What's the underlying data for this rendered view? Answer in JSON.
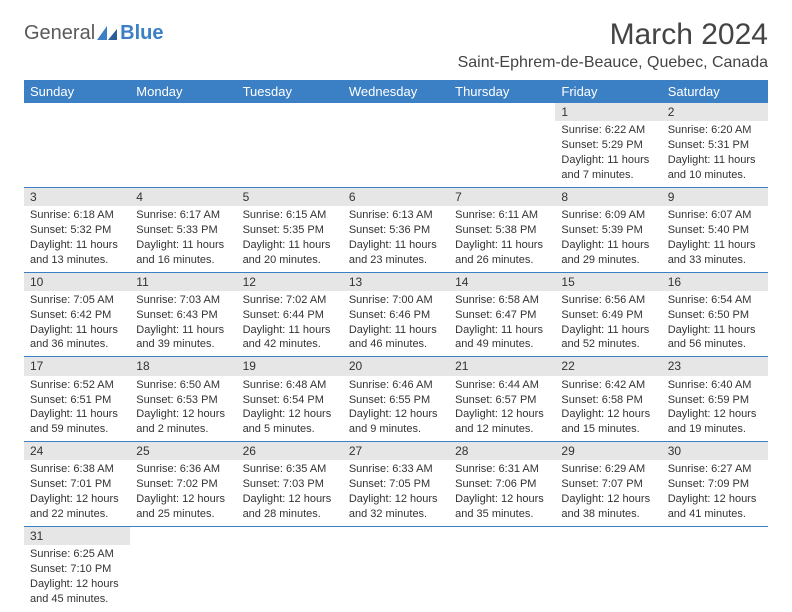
{
  "logo": {
    "text_general": "General",
    "text_blue": "Blue"
  },
  "title": "March 2024",
  "location": "Saint-Ephrem-de-Beauce, Quebec, Canada",
  "colors": {
    "header_bg": "#3b7fc4",
    "header_text": "#ffffff",
    "daynum_bg": "#e6e6e6",
    "cell_border": "#3b7fc4",
    "text": "#333333",
    "logo_blue": "#3b7fc4",
    "background": "#ffffff"
  },
  "weekdays": [
    "Sunday",
    "Monday",
    "Tuesday",
    "Wednesday",
    "Thursday",
    "Friday",
    "Saturday"
  ],
  "weeks": [
    [
      null,
      null,
      null,
      null,
      null,
      {
        "day": "1",
        "sunrise": "Sunrise: 6:22 AM",
        "sunset": "Sunset: 5:29 PM",
        "daylight1": "Daylight: 11 hours",
        "daylight2": "and 7 minutes."
      },
      {
        "day": "2",
        "sunrise": "Sunrise: 6:20 AM",
        "sunset": "Sunset: 5:31 PM",
        "daylight1": "Daylight: 11 hours",
        "daylight2": "and 10 minutes."
      }
    ],
    [
      {
        "day": "3",
        "sunrise": "Sunrise: 6:18 AM",
        "sunset": "Sunset: 5:32 PM",
        "daylight1": "Daylight: 11 hours",
        "daylight2": "and 13 minutes."
      },
      {
        "day": "4",
        "sunrise": "Sunrise: 6:17 AM",
        "sunset": "Sunset: 5:33 PM",
        "daylight1": "Daylight: 11 hours",
        "daylight2": "and 16 minutes."
      },
      {
        "day": "5",
        "sunrise": "Sunrise: 6:15 AM",
        "sunset": "Sunset: 5:35 PM",
        "daylight1": "Daylight: 11 hours",
        "daylight2": "and 20 minutes."
      },
      {
        "day": "6",
        "sunrise": "Sunrise: 6:13 AM",
        "sunset": "Sunset: 5:36 PM",
        "daylight1": "Daylight: 11 hours",
        "daylight2": "and 23 minutes."
      },
      {
        "day": "7",
        "sunrise": "Sunrise: 6:11 AM",
        "sunset": "Sunset: 5:38 PM",
        "daylight1": "Daylight: 11 hours",
        "daylight2": "and 26 minutes."
      },
      {
        "day": "8",
        "sunrise": "Sunrise: 6:09 AM",
        "sunset": "Sunset: 5:39 PM",
        "daylight1": "Daylight: 11 hours",
        "daylight2": "and 29 minutes."
      },
      {
        "day": "9",
        "sunrise": "Sunrise: 6:07 AM",
        "sunset": "Sunset: 5:40 PM",
        "daylight1": "Daylight: 11 hours",
        "daylight2": "and 33 minutes."
      }
    ],
    [
      {
        "day": "10",
        "sunrise": "Sunrise: 7:05 AM",
        "sunset": "Sunset: 6:42 PM",
        "daylight1": "Daylight: 11 hours",
        "daylight2": "and 36 minutes."
      },
      {
        "day": "11",
        "sunrise": "Sunrise: 7:03 AM",
        "sunset": "Sunset: 6:43 PM",
        "daylight1": "Daylight: 11 hours",
        "daylight2": "and 39 minutes."
      },
      {
        "day": "12",
        "sunrise": "Sunrise: 7:02 AM",
        "sunset": "Sunset: 6:44 PM",
        "daylight1": "Daylight: 11 hours",
        "daylight2": "and 42 minutes."
      },
      {
        "day": "13",
        "sunrise": "Sunrise: 7:00 AM",
        "sunset": "Sunset: 6:46 PM",
        "daylight1": "Daylight: 11 hours",
        "daylight2": "and 46 minutes."
      },
      {
        "day": "14",
        "sunrise": "Sunrise: 6:58 AM",
        "sunset": "Sunset: 6:47 PM",
        "daylight1": "Daylight: 11 hours",
        "daylight2": "and 49 minutes."
      },
      {
        "day": "15",
        "sunrise": "Sunrise: 6:56 AM",
        "sunset": "Sunset: 6:49 PM",
        "daylight1": "Daylight: 11 hours",
        "daylight2": "and 52 minutes."
      },
      {
        "day": "16",
        "sunrise": "Sunrise: 6:54 AM",
        "sunset": "Sunset: 6:50 PM",
        "daylight1": "Daylight: 11 hours",
        "daylight2": "and 56 minutes."
      }
    ],
    [
      {
        "day": "17",
        "sunrise": "Sunrise: 6:52 AM",
        "sunset": "Sunset: 6:51 PM",
        "daylight1": "Daylight: 11 hours",
        "daylight2": "and 59 minutes."
      },
      {
        "day": "18",
        "sunrise": "Sunrise: 6:50 AM",
        "sunset": "Sunset: 6:53 PM",
        "daylight1": "Daylight: 12 hours",
        "daylight2": "and 2 minutes."
      },
      {
        "day": "19",
        "sunrise": "Sunrise: 6:48 AM",
        "sunset": "Sunset: 6:54 PM",
        "daylight1": "Daylight: 12 hours",
        "daylight2": "and 5 minutes."
      },
      {
        "day": "20",
        "sunrise": "Sunrise: 6:46 AM",
        "sunset": "Sunset: 6:55 PM",
        "daylight1": "Daylight: 12 hours",
        "daylight2": "and 9 minutes."
      },
      {
        "day": "21",
        "sunrise": "Sunrise: 6:44 AM",
        "sunset": "Sunset: 6:57 PM",
        "daylight1": "Daylight: 12 hours",
        "daylight2": "and 12 minutes."
      },
      {
        "day": "22",
        "sunrise": "Sunrise: 6:42 AM",
        "sunset": "Sunset: 6:58 PM",
        "daylight1": "Daylight: 12 hours",
        "daylight2": "and 15 minutes."
      },
      {
        "day": "23",
        "sunrise": "Sunrise: 6:40 AM",
        "sunset": "Sunset: 6:59 PM",
        "daylight1": "Daylight: 12 hours",
        "daylight2": "and 19 minutes."
      }
    ],
    [
      {
        "day": "24",
        "sunrise": "Sunrise: 6:38 AM",
        "sunset": "Sunset: 7:01 PM",
        "daylight1": "Daylight: 12 hours",
        "daylight2": "and 22 minutes."
      },
      {
        "day": "25",
        "sunrise": "Sunrise: 6:36 AM",
        "sunset": "Sunset: 7:02 PM",
        "daylight1": "Daylight: 12 hours",
        "daylight2": "and 25 minutes."
      },
      {
        "day": "26",
        "sunrise": "Sunrise: 6:35 AM",
        "sunset": "Sunset: 7:03 PM",
        "daylight1": "Daylight: 12 hours",
        "daylight2": "and 28 minutes."
      },
      {
        "day": "27",
        "sunrise": "Sunrise: 6:33 AM",
        "sunset": "Sunset: 7:05 PM",
        "daylight1": "Daylight: 12 hours",
        "daylight2": "and 32 minutes."
      },
      {
        "day": "28",
        "sunrise": "Sunrise: 6:31 AM",
        "sunset": "Sunset: 7:06 PM",
        "daylight1": "Daylight: 12 hours",
        "daylight2": "and 35 minutes."
      },
      {
        "day": "29",
        "sunrise": "Sunrise: 6:29 AM",
        "sunset": "Sunset: 7:07 PM",
        "daylight1": "Daylight: 12 hours",
        "daylight2": "and 38 minutes."
      },
      {
        "day": "30",
        "sunrise": "Sunrise: 6:27 AM",
        "sunset": "Sunset: 7:09 PM",
        "daylight1": "Daylight: 12 hours",
        "daylight2": "and 41 minutes."
      }
    ],
    [
      {
        "day": "31",
        "sunrise": "Sunrise: 6:25 AM",
        "sunset": "Sunset: 7:10 PM",
        "daylight1": "Daylight: 12 hours",
        "daylight2": "and 45 minutes."
      },
      null,
      null,
      null,
      null,
      null,
      null
    ]
  ]
}
